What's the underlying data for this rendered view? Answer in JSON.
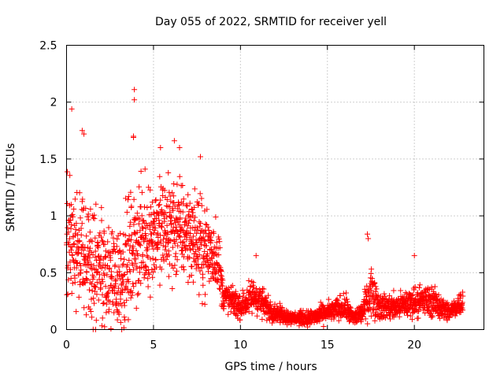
{
  "chart_data": {
    "type": "scatter",
    "title": "Day 055 of 2022, SRMTID for receiver yell",
    "xlabel": "GPS time / hours",
    "ylabel": "SRMTID / TECUs",
    "xlim": [
      0,
      24
    ],
    "ylim": [
      0,
      2.5
    ],
    "x_ticks": [
      0,
      5,
      10,
      15,
      20
    ],
    "x_tick_labels": [
      "0",
      "5",
      "10",
      "15",
      "20"
    ],
    "y_ticks": [
      0,
      0.5,
      1,
      1.5,
      2,
      2.5
    ],
    "y_tick_labels": [
      "0",
      "0.5",
      "1",
      "1.5",
      "2",
      "2.5"
    ],
    "grid": true,
    "marker": "+",
    "series_color": "#ff0000",
    "envelope": {
      "description": "sampled points approximating the dense scatter cloud",
      "x_knots": [
        0,
        1,
        2,
        3,
        4,
        5,
        6,
        7,
        8,
        8.7,
        9.0,
        10,
        10.8,
        11.5,
        12,
        13,
        14,
        15,
        16,
        16.5,
        17,
        17.5,
        18,
        19,
        20,
        21,
        22,
        22.8
      ],
      "y_mid": [
        0.8,
        0.6,
        0.5,
        0.45,
        0.75,
        0.85,
        0.9,
        0.85,
        0.7,
        0.65,
        0.3,
        0.2,
        0.3,
        0.2,
        0.15,
        0.1,
        0.1,
        0.15,
        0.2,
        0.1,
        0.15,
        0.35,
        0.2,
        0.2,
        0.25,
        0.25,
        0.15,
        0.25
      ],
      "y_spread": [
        0.45,
        0.45,
        0.45,
        0.45,
        0.45,
        0.4,
        0.45,
        0.35,
        0.35,
        0.3,
        0.12,
        0.1,
        0.15,
        0.1,
        0.07,
        0.05,
        0.06,
        0.08,
        0.1,
        0.06,
        0.08,
        0.2,
        0.1,
        0.1,
        0.12,
        0.12,
        0.07,
        0.1
      ]
    },
    "notable_points": [
      {
        "x": 0.3,
        "y": 1.94
      },
      {
        "x": 3.9,
        "y": 2.11
      },
      {
        "x": 3.9,
        "y": 2.02
      },
      {
        "x": 0.9,
        "y": 1.75
      },
      {
        "x": 1.0,
        "y": 1.72
      },
      {
        "x": 3.85,
        "y": 1.69
      },
      {
        "x": 3.85,
        "y": 1.7
      },
      {
        "x": 6.2,
        "y": 1.66
      },
      {
        "x": 6.5,
        "y": 1.6
      },
      {
        "x": 5.4,
        "y": 1.6
      },
      {
        "x": 7.7,
        "y": 1.52
      },
      {
        "x": 17.3,
        "y": 0.84
      },
      {
        "x": 17.35,
        "y": 0.8
      },
      {
        "x": 20.0,
        "y": 0.65
      },
      {
        "x": 10.9,
        "y": 0.65
      }
    ]
  }
}
